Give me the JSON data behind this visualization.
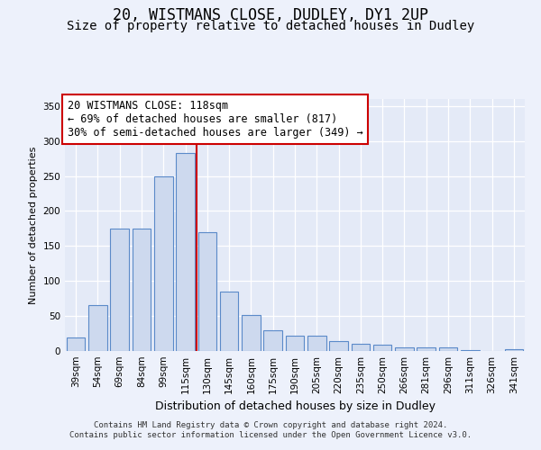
{
  "title_line1": "20, WISTMANS CLOSE, DUDLEY, DY1 2UP",
  "title_line2": "Size of property relative to detached houses in Dudley",
  "xlabel": "Distribution of detached houses by size in Dudley",
  "ylabel": "Number of detached properties",
  "categories": [
    "39sqm",
    "54sqm",
    "69sqm",
    "84sqm",
    "99sqm",
    "115sqm",
    "130sqm",
    "145sqm",
    "160sqm",
    "175sqm",
    "190sqm",
    "205sqm",
    "220sqm",
    "235sqm",
    "250sqm",
    "266sqm",
    "281sqm",
    "296sqm",
    "311sqm",
    "326sqm",
    "341sqm"
  ],
  "values": [
    19,
    65,
    175,
    175,
    250,
    283,
    170,
    85,
    51,
    30,
    22,
    22,
    14,
    10,
    9,
    5,
    5,
    5,
    1,
    0,
    2
  ],
  "bar_color": "#cdd9ee",
  "bar_edge_color": "#5b8ac9",
  "vline_color": "#cc0000",
  "vline_x": 5.5,
  "annotation_line1": "20 WISTMANS CLOSE: 118sqm",
  "annotation_line2": "← 69% of detached houses are smaller (817)",
  "annotation_line3": "30% of semi-detached houses are larger (349) →",
  "annotation_box_color": "white",
  "annotation_box_edge": "#cc0000",
  "ylim": [
    0,
    360
  ],
  "yticks": [
    0,
    50,
    100,
    150,
    200,
    250,
    300,
    350
  ],
  "footer_line1": "Contains HM Land Registry data © Crown copyright and database right 2024.",
  "footer_line2": "Contains public sector information licensed under the Open Government Licence v3.0.",
  "bg_color": "#edf1fb",
  "plot_bg_color": "#e4eaf7",
  "grid_color": "#ffffff",
  "title1_fontsize": 12,
  "title2_fontsize": 10,
  "annotation_fontsize": 8.5,
  "axis_fontsize": 8,
  "tick_fontsize": 7.5,
  "xlabel_fontsize": 9,
  "footer_fontsize": 6.5
}
